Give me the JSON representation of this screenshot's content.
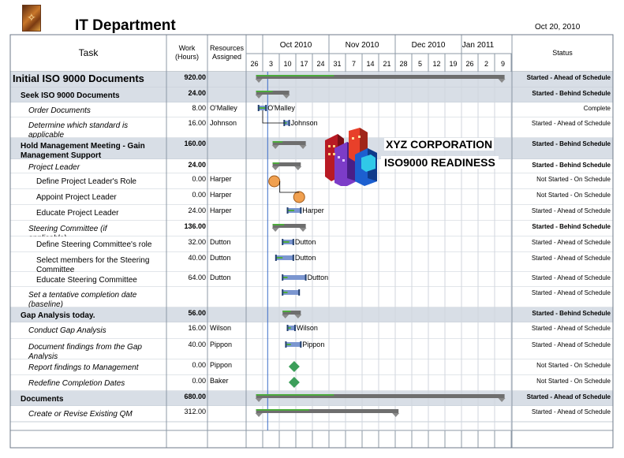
{
  "header": {
    "title": "IT Department",
    "date": "Oct 20, 2010"
  },
  "logo_icon": "flame-logo-icon",
  "columns": {
    "task": "Task",
    "work": "Work (Hours)",
    "resources": "Resources Assigned",
    "status": "Status"
  },
  "timeline": {
    "months": [
      {
        "label": "Oct 2010",
        "start": 1,
        "span": 4
      },
      {
        "label": "Nov 2010",
        "start": 5,
        "span": 4
      },
      {
        "label": "Dec 2010",
        "start": 9,
        "span": 4
      },
      {
        "label": "Jan 2011",
        "start": 13,
        "span": 2
      }
    ],
    "weeks": [
      "26",
      "3",
      "10",
      "17",
      "24",
      "31",
      "7",
      "14",
      "21",
      "28",
      "5",
      "12",
      "19",
      "26",
      "2",
      "9"
    ],
    "status_date_week": 1.3
  },
  "rows": [
    {
      "name": "Initial ISO 9000 Documents",
      "level": 0,
      "summary": true,
      "work": "920.00",
      "resources": "",
      "status": "Started - Ahead of Schedule",
      "bar": {
        "type": "summary",
        "start": 0.6,
        "end": 15.6,
        "progress": 5.3
      }
    },
    {
      "name": "Seek ISO 9000 Documents",
      "level": 1,
      "summary": true,
      "work": "24.00",
      "resources": "",
      "status": "Started - Behind Schedule",
      "bar": {
        "type": "summary",
        "start": 0.6,
        "end": 2.6,
        "progress": 1.6
      }
    },
    {
      "name": "Order Documents",
      "level": 2,
      "summary": false,
      "italic": true,
      "work": "8.00",
      "resources": "O'Malley",
      "status": "Complete",
      "bar": {
        "type": "task",
        "start": 0.75,
        "end": 1.2,
        "progress": 1.2,
        "label": "O'Malley"
      }
    },
    {
      "name": "Determine which standard is applicable",
      "level": 2,
      "summary": false,
      "italic": true,
      "work": "16.00",
      "resources": "Johnson",
      "status": "Started - Ahead of Schedule",
      "bar": {
        "type": "task",
        "start": 2.3,
        "end": 2.6,
        "progress": 2.45,
        "label": "Johnson"
      }
    },
    {
      "name": "Hold Management Meeting - Gain Management Support",
      "level": 1,
      "summary": true,
      "work": "160.00",
      "resources": "",
      "status": "Started - Behind Schedule",
      "bar": {
        "type": "summary",
        "start": 1.6,
        "end": 3.6,
        "progress": 2.2
      }
    },
    {
      "name": "Project Leader",
      "level": 2,
      "summary": true,
      "italic": true,
      "work": "24.00",
      "resources": "",
      "status": "Started - Behind Schedule",
      "bar": {
        "type": "summary",
        "start": 1.6,
        "end": 3.3,
        "progress": 2.0
      }
    },
    {
      "name": "Define Project Leader's Role",
      "level": 3,
      "summary": false,
      "work": "0.00",
      "resources": "Harper",
      "status": "Not Started - On Schedule",
      "bar": {
        "type": "milestone-round",
        "start": 1.7,
        "end": 1.7
      }
    },
    {
      "name": "Appoint Project Leader",
      "level": 3,
      "summary": false,
      "work": "0.00",
      "resources": "Harper",
      "status": "Not Started - On Schedule",
      "bar": {
        "type": "milestone-round",
        "start": 3.2,
        "end": 3.2
      }
    },
    {
      "name": "Educate Project Leader",
      "level": 3,
      "summary": false,
      "work": "24.00",
      "resources": "Harper",
      "status": "Started - Ahead of Schedule",
      "bar": {
        "type": "task",
        "start": 2.5,
        "end": 3.3,
        "progress": 2.9,
        "label": "Harper"
      }
    },
    {
      "name": "Steering Committee (if applicable)",
      "level": 2,
      "summary": true,
      "italic": true,
      "work": "136.00",
      "resources": "",
      "status": "Started - Behind Schedule",
      "bar": {
        "type": "summary",
        "start": 1.6,
        "end": 3.6,
        "progress": 2.3
      }
    },
    {
      "name": "Define Steering Committee's role",
      "level": 3,
      "summary": false,
      "work": "32.00",
      "resources": "Dutton",
      "status": "Started - Ahead of Schedule",
      "bar": {
        "type": "task",
        "start": 2.2,
        "end": 2.85,
        "progress": 2.6,
        "label": "Dutton"
      }
    },
    {
      "name": "Select members for the Steering Committee",
      "level": 3,
      "summary": false,
      "work": "40.00",
      "resources": "Dutton",
      "status": "Started - Ahead of Schedule",
      "bar": {
        "type": "task",
        "start": 1.8,
        "end": 2.85,
        "progress": 2.2,
        "label": "Dutton"
      }
    },
    {
      "name": "Educate Steering Committee",
      "level": 3,
      "summary": false,
      "work": "64.00",
      "resources": "Dutton",
      "status": "Started - Ahead of Schedule",
      "bar": {
        "type": "task",
        "start": 2.2,
        "end": 3.6,
        "progress": 2.5,
        "label": "Dutton"
      }
    },
    {
      "name": "Set a tentative completion date (baseline)",
      "level": 2,
      "summary": false,
      "italic": true,
      "work": "",
      "resources": "",
      "status": "Started - Ahead of Schedule",
      "bar": {
        "type": "task",
        "start": 2.2,
        "end": 3.2,
        "progress": 2.5,
        "label": ""
      }
    },
    {
      "name": "Gap Analysis today.",
      "level": 1,
      "summary": true,
      "work": "56.00",
      "resources": "",
      "status": "Started - Behind Schedule",
      "bar": {
        "type": "summary",
        "start": 2.2,
        "end": 3.3,
        "progress": 2.7
      }
    },
    {
      "name": "Conduct Gap Analysis",
      "level": 2,
      "summary": false,
      "italic": true,
      "work": "16.00",
      "resources": "Wilson",
      "status": "Started - Ahead of Schedule",
      "bar": {
        "type": "task",
        "start": 2.5,
        "end": 2.95,
        "progress": 2.7,
        "label": "Wilson"
      }
    },
    {
      "name": "Document findings from the Gap Analysis",
      "level": 2,
      "summary": false,
      "italic": true,
      "work": "40.00",
      "resources": "Pippon",
      "status": "Started - Ahead of Schedule",
      "bar": {
        "type": "task",
        "start": 2.4,
        "end": 3.3,
        "progress": 2.7,
        "label": "Pippon"
      }
    },
    {
      "name": "Report findings to Management",
      "level": 2,
      "summary": false,
      "italic": true,
      "work": "0.00",
      "resources": "Pippon",
      "status": "Not Started - On Schedule",
      "bar": {
        "type": "milestone-diamond",
        "start": 2.9,
        "end": 2.9
      }
    },
    {
      "name": "Redefine Completion Dates",
      "level": 2,
      "summary": false,
      "italic": true,
      "work": "0.00",
      "resources": "Baker",
      "status": "Not Started - On Schedule",
      "bar": {
        "type": "milestone-diamond",
        "start": 2.9,
        "end": 2.9
      }
    },
    {
      "name": "Documents",
      "level": 1,
      "summary": true,
      "work": "680.00",
      "resources": "",
      "status": "Started - Ahead of Schedule",
      "bar": {
        "type": "summary",
        "start": 0.6,
        "end": 15.6,
        "progress": 5.3
      }
    },
    {
      "name": "Create or Revise Existing QM",
      "level": 2,
      "summary": false,
      "italic": true,
      "work": "312.00",
      "resources": "",
      "status": "Started - Ahead of Schedule",
      "bar": {
        "type": "summary",
        "start": 0.6,
        "end": 9.2,
        "progress": 3.8
      }
    }
  ],
  "overlay": {
    "title": "XYZ CORPORATION",
    "subtitle": "ISO9000 READINESS",
    "icon": "office-buildings-icon"
  },
  "colors": {
    "summary_row": "#d8dee6",
    "grid_line": "#8c98a6",
    "progress": "#4caa3c",
    "task_bar": "#7b96d0",
    "summary_bar": "#6e6e6e",
    "milestone_round": "#f0a050",
    "milestone_diamond": "#3c9e5a",
    "status_line": "#3a6cc8"
  }
}
